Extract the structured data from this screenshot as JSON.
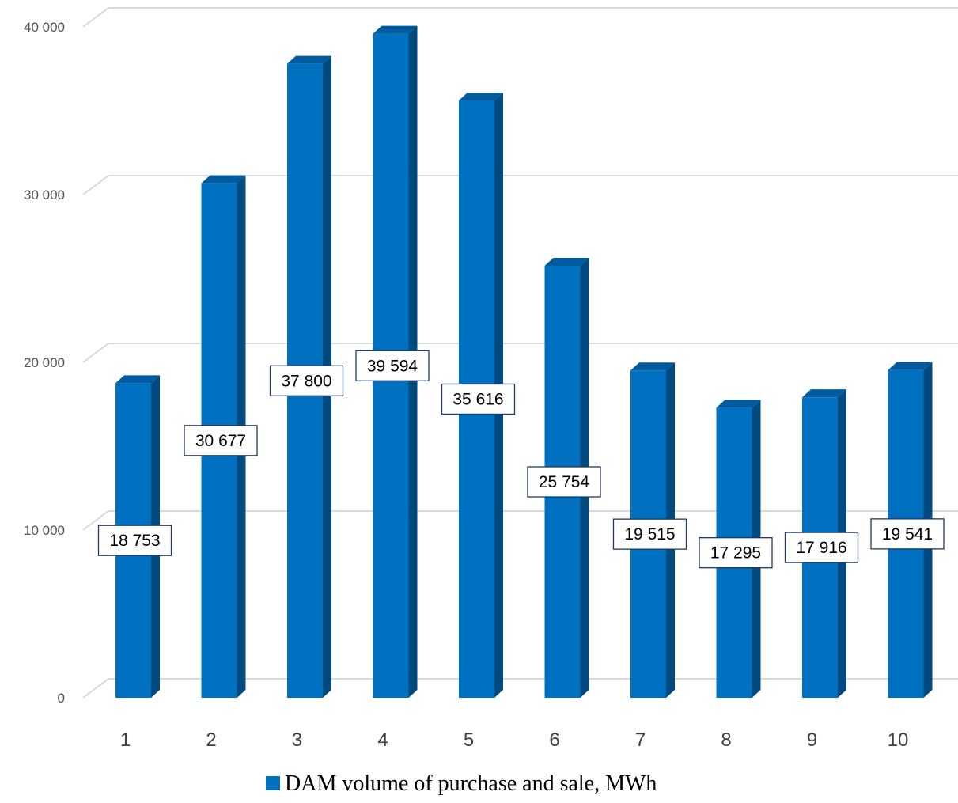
{
  "chart_data": {
    "type": "bar",
    "title": "",
    "xlabel": "",
    "ylabel": "",
    "categories": [
      "1",
      "2",
      "3",
      "4",
      "5",
      "6",
      "7",
      "8",
      "9",
      "10"
    ],
    "series": [
      {
        "name": "DAM volume of purchase and sale, MWh",
        "values": [
          18753,
          30677,
          37800,
          39594,
          35616,
          25754,
          19515,
          17295,
          17916,
          19541
        ],
        "data_labels": [
          "18 753",
          "30 677",
          "37 800",
          "39 594",
          "35 616",
          "25 754",
          "19 515",
          "17 295",
          "17 916",
          "19 541"
        ]
      }
    ],
    "ylim": [
      0,
      40000
    ],
    "yticks": [
      0,
      10000,
      20000,
      30000,
      40000
    ],
    "ytick_labels": [
      "0",
      "10 000",
      "20 000",
      "30 000",
      "40 000"
    ],
    "grid": true,
    "legend_position": "bottom",
    "style": "3d-column",
    "colors": {
      "bar_front": "#0070C0",
      "bar_side": "#004A80",
      "bar_top": "#005A9E",
      "gridline": "#D9D9D9"
    }
  }
}
